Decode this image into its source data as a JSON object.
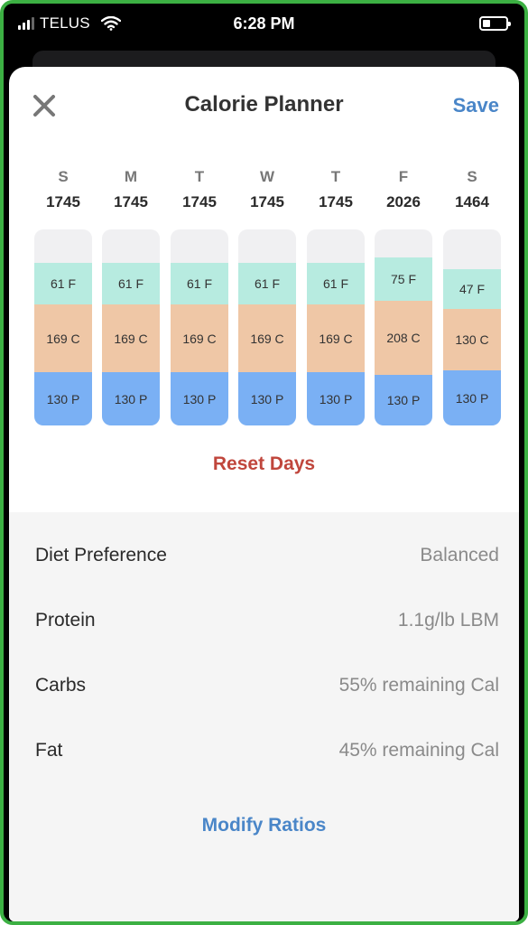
{
  "status_bar": {
    "carrier": "TELUS",
    "time": "6:28 PM"
  },
  "header": {
    "title": "Calorie Planner",
    "save_label": "Save",
    "close_icon": "close-icon"
  },
  "days": [
    {
      "letter": "S",
      "calories": "1745",
      "fat": "61 F",
      "carbs": "169 C",
      "protein": "130 P"
    },
    {
      "letter": "M",
      "calories": "1745",
      "fat": "61 F",
      "carbs": "169 C",
      "protein": "130 P"
    },
    {
      "letter": "T",
      "calories": "1745",
      "fat": "61 F",
      "carbs": "169 C",
      "protein": "130 P"
    },
    {
      "letter": "W",
      "calories": "1745",
      "fat": "61 F",
      "carbs": "169 C",
      "protein": "130 P"
    },
    {
      "letter": "T",
      "calories": "1745",
      "fat": "61 F",
      "carbs": "169 C",
      "protein": "130 P"
    },
    {
      "letter": "F",
      "calories": "2026",
      "fat": "75 F",
      "carbs": "208 C",
      "protein": "130 P"
    },
    {
      "letter": "S",
      "calories": "1464",
      "fat": "47 F",
      "carbs": "130 C",
      "protein": "130 P"
    }
  ],
  "reset_label": "Reset Days",
  "settings": [
    {
      "label": "Diet Preference",
      "value": "Balanced"
    },
    {
      "label": "Protein",
      "value": "1.1g/lb LBM"
    },
    {
      "label": "Carbs",
      "value": "55% remaining Cal"
    },
    {
      "label": "Fat",
      "value": "45% remaining Cal"
    }
  ],
  "modify_label": "Modify Ratios",
  "colors": {
    "fat": "#b7ebe0",
    "carbs": "#efc7a6",
    "protein": "#7ab0f4",
    "accent": "#4a86c8",
    "reset": "#c0463c",
    "frame": "#3cb043"
  }
}
